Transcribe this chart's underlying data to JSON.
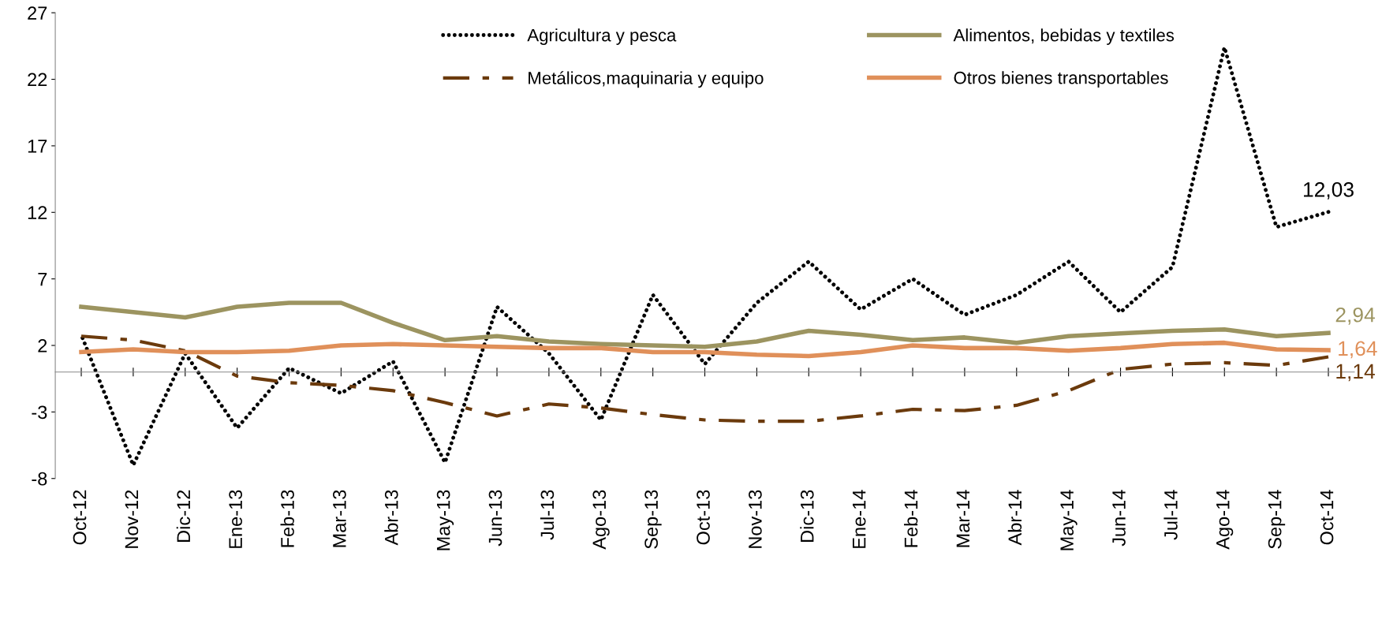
{
  "chart_data": {
    "type": "line",
    "categories": [
      "Oct-12",
      "Nov-12",
      "Dic-12",
      "Ene-13",
      "Feb-13",
      "Mar-13",
      "Abr-13",
      "May-13",
      "Jun-13",
      "Jul-13",
      "Ago-13",
      "Sep-13",
      "Oct-13",
      "Nov-13",
      "Dic-13",
      "Ene-14",
      "Feb-14",
      "Mar-14",
      "Abr-14",
      "May-14",
      "Jun-14",
      "Jul-14",
      "Ago-14",
      "Sep-14",
      "Oct-14"
    ],
    "series": [
      {
        "name": "Agricultura y pesca",
        "color": "#000000",
        "line_style": "dotted",
        "values": [
          2.8,
          -7.0,
          1.4,
          -4.2,
          0.3,
          -1.6,
          0.8,
          -6.8,
          4.9,
          1.4,
          -3.6,
          5.8,
          0.6,
          5.2,
          8.3,
          4.7,
          7.0,
          4.3,
          5.8,
          8.3,
          4.5,
          7.9,
          24.4,
          10.9,
          12.03
        ]
      },
      {
        "name": "Metálicos,maquinaria y equipo",
        "color": "#6b3a0c",
        "line_style": "dashed",
        "values": [
          2.7,
          2.4,
          1.6,
          -0.3,
          -0.8,
          -1.0,
          -1.4,
          -2.3,
          -3.3,
          -2.4,
          -2.7,
          -3.2,
          -3.6,
          -3.7,
          -3.7,
          -3.3,
          -2.8,
          -2.9,
          -2.5,
          -1.4,
          0.2,
          0.6,
          0.7,
          0.5,
          1.14
        ]
      },
      {
        "name": "Alimentos, bebidas y textiles",
        "color": "#9c9460",
        "line_style": "solid",
        "values": [
          4.9,
          4.5,
          4.1,
          4.9,
          5.2,
          5.2,
          3.7,
          2.4,
          2.7,
          2.3,
          2.1,
          2.0,
          1.9,
          2.3,
          3.1,
          2.8,
          2.4,
          2.6,
          2.2,
          2.7,
          2.9,
          3.1,
          3.2,
          2.7,
          2.94
        ]
      },
      {
        "name": "Otros bienes transportables",
        "color": "#e0905a",
        "line_style": "solid",
        "values": [
          1.5,
          1.7,
          1.5,
          1.5,
          1.6,
          2.0,
          2.1,
          2.0,
          1.9,
          1.8,
          1.8,
          1.5,
          1.5,
          1.3,
          1.2,
          1.5,
          2.0,
          1.8,
          1.8,
          1.6,
          1.8,
          2.1,
          2.2,
          1.7,
          1.64
        ]
      }
    ],
    "annotations": [
      {
        "text": "12,03",
        "x": "Oct-14",
        "y": 12.03
      },
      {
        "text": "2,94",
        "x": "Oct-14",
        "y": 2.94
      },
      {
        "text": "1,64",
        "x": "Oct-14",
        "y": 1.64
      },
      {
        "text": "1,14",
        "x": "Oct-14",
        "y": 1.14
      }
    ],
    "ylim": [
      -8,
      27
    ],
    "yticks": [
      -8,
      -3,
      2,
      7,
      12,
      17,
      22,
      27
    ],
    "grid": false,
    "legend": "top",
    "marker": "none"
  }
}
